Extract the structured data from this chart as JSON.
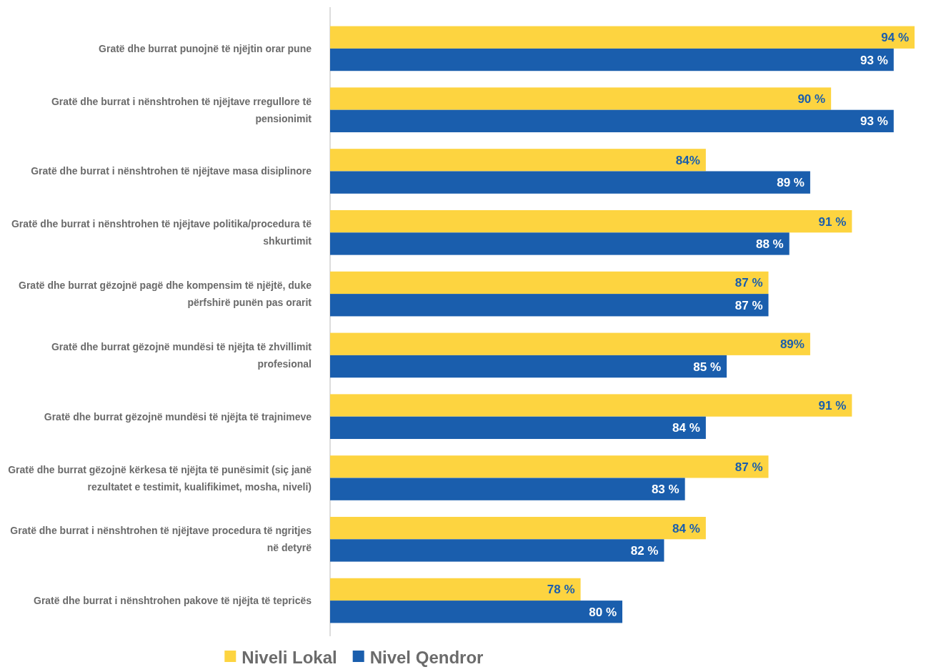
{
  "chart_data": {
    "type": "bar",
    "orientation": "horizontal",
    "categories": [
      "Gratë dhe burrat punojnë të njëjtin orar pune",
      "Gratë dhe burrat i nënshtrohen të njëjtave rregullore të pensionimit",
      "Gratë dhe burrat i nënshtrohen të njëjtave masa disiplinore",
      "Gratë dhe burrat i nënshtrohen të njëjtave politika/procedura të shkurtimit",
      "Gratë dhe burrat gëzojnë pagë dhe kompensim të njëjtë, duke përfshirë punën pas orarit",
      "Gratë dhe burrat gëzojnë mundësi të njëjta të zhvillimit profesional",
      "Gratë dhe burrat gëzojnë mundësi të njëjta të trajnimeve",
      "Gratë dhe burrat gëzojnë kërkesa të njëjta të punësimit (siç janë rezultatet e testimit, kualifikimet, mosha, niveli)",
      "Gratë dhe burrat i nënshtrohen të njëjtave procedura të ngritjes në detyrë",
      "Gratë dhe burrat i nënshtrohen pakove të njëjta të tepricës"
    ],
    "series": [
      {
        "name": "Niveli Lokal",
        "color": "#fdd440",
        "values": [
          94,
          90,
          84,
          91,
          87,
          89,
          91,
          87,
          84,
          78
        ],
        "value_labels": [
          "94 %",
          "90 %",
          "84%",
          "91 %",
          "87 %",
          "89%",
          "91 %",
          "87 %",
          "84 %",
          "78 %"
        ]
      },
      {
        "name": "Nivel Qendror",
        "color": "#1a5ead",
        "values": [
          93,
          93,
          89,
          88,
          87,
          85,
          84,
          83,
          82,
          80
        ],
        "value_labels": [
          "93 %",
          "93 %",
          "89 %",
          "88 %",
          "87 %",
          "85 %",
          "84 %",
          "83 %",
          "82 %",
          "80 %"
        ]
      }
    ],
    "xlim": [
      66,
      94
    ],
    "tick_labels": "y",
    "legend": "bottom"
  }
}
